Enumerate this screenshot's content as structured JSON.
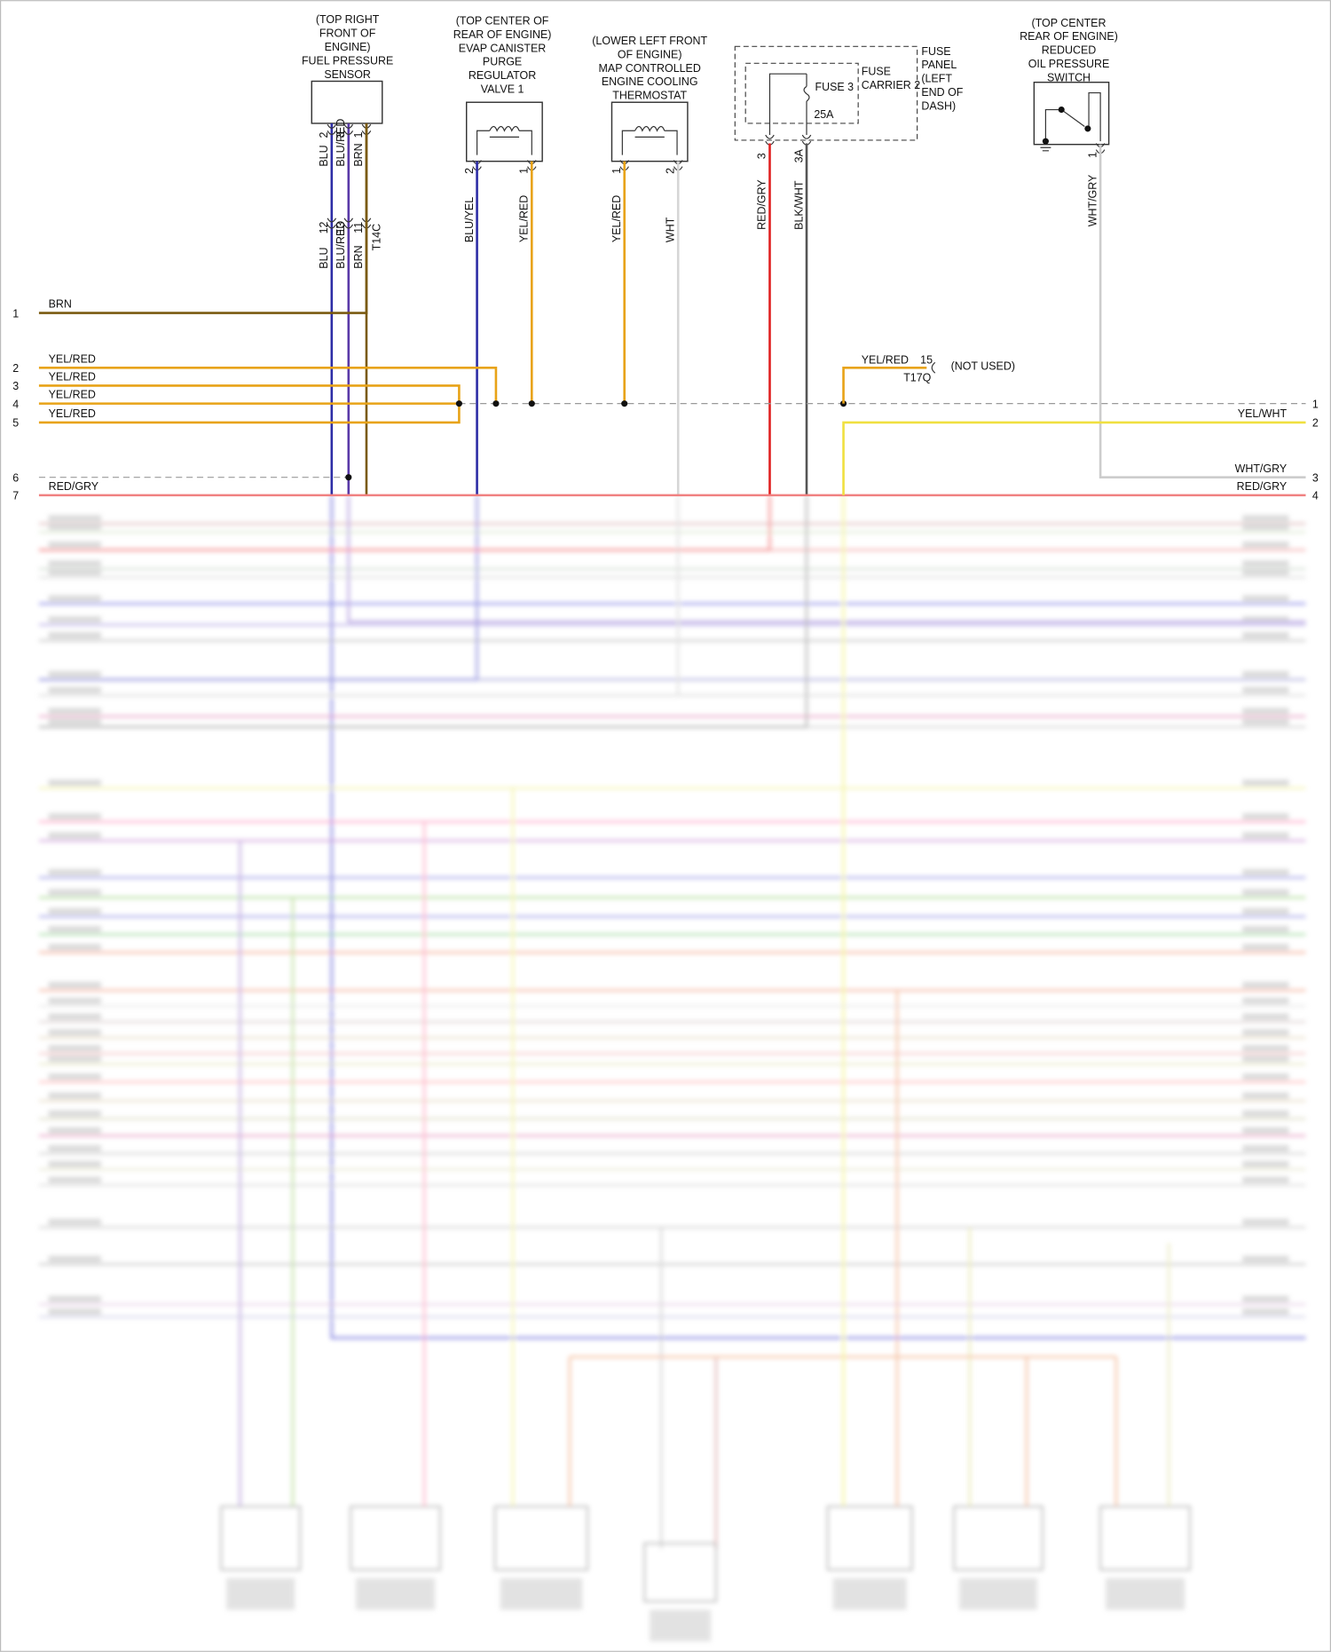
{
  "components": [
    {
      "label": [
        "(TOP RIGHT",
        "FRONT OF",
        "ENGINE)",
        "FUEL PRESSURE",
        "SENSOR"
      ],
      "pins": [
        "2",
        "3",
        "1"
      ],
      "wires": [
        "BLU",
        "BLU/RED",
        "BRN"
      ]
    },
    {
      "label": [
        "(TOP CENTER OF",
        "REAR OF ENGINE)",
        "EVAP CANISTER",
        "PURGE",
        "REGULATOR",
        "VALVE 1"
      ],
      "pins": [
        "2",
        "1"
      ],
      "wires": [
        "BLU/YEL",
        "YEL/RED"
      ]
    },
    {
      "label": [
        "(LOWER LEFT FRONT",
        "OF ENGINE)",
        "MAP CONTROLLED",
        "ENGINE COOLING",
        "THERMOSTAT"
      ],
      "pins": [
        "1",
        "2"
      ],
      "wires": [
        "YEL/RED",
        "WHT"
      ]
    },
    {
      "label": [
        "(TOP CENTER",
        "REAR OF ENGINE)",
        "REDUCED",
        "OIL PRESSURE",
        "SWITCH"
      ],
      "pins": [
        "1"
      ],
      "wires": [
        "WHT/GRY"
      ]
    }
  ],
  "connector_t14c": {
    "name": "T14C",
    "pins": [
      "12",
      "13",
      "11"
    ],
    "wires": [
      "BLU",
      "BLU/RED",
      "BRN"
    ]
  },
  "fuse": {
    "panel": [
      "FUSE",
      "PANEL",
      "(LEFT",
      "END OF",
      "DASH)"
    ],
    "carrier": [
      "FUSE",
      "CARRIER 2"
    ],
    "fuse": "FUSE 3",
    "rating": "25A",
    "pins": [
      "3",
      "3A"
    ],
    "wires": [
      "RED/GRY",
      "BLK/WHT"
    ]
  },
  "t17q": {
    "wire": "YEL/RED",
    "pin": "15",
    "name": "T17Q",
    "note": "(NOT USED)"
  },
  "left_rows": [
    {
      "num": "1",
      "wire": "BRN"
    },
    {
      "num": "2",
      "wire": "YEL/RED"
    },
    {
      "num": "3",
      "wire": "YEL/RED"
    },
    {
      "num": "4",
      "wire": "YEL/RED"
    },
    {
      "num": "5",
      "wire": "YEL/RED"
    },
    {
      "num": "6"
    },
    {
      "num": "7",
      "wire": "RED/GRY"
    }
  ],
  "right_rows": [
    {
      "num": "1"
    },
    {
      "num": "2",
      "wire": "YEL/WHT"
    },
    {
      "num": "3",
      "wire": "WHT/GRY"
    },
    {
      "num": "4",
      "wire": "RED/GRY"
    }
  ]
}
